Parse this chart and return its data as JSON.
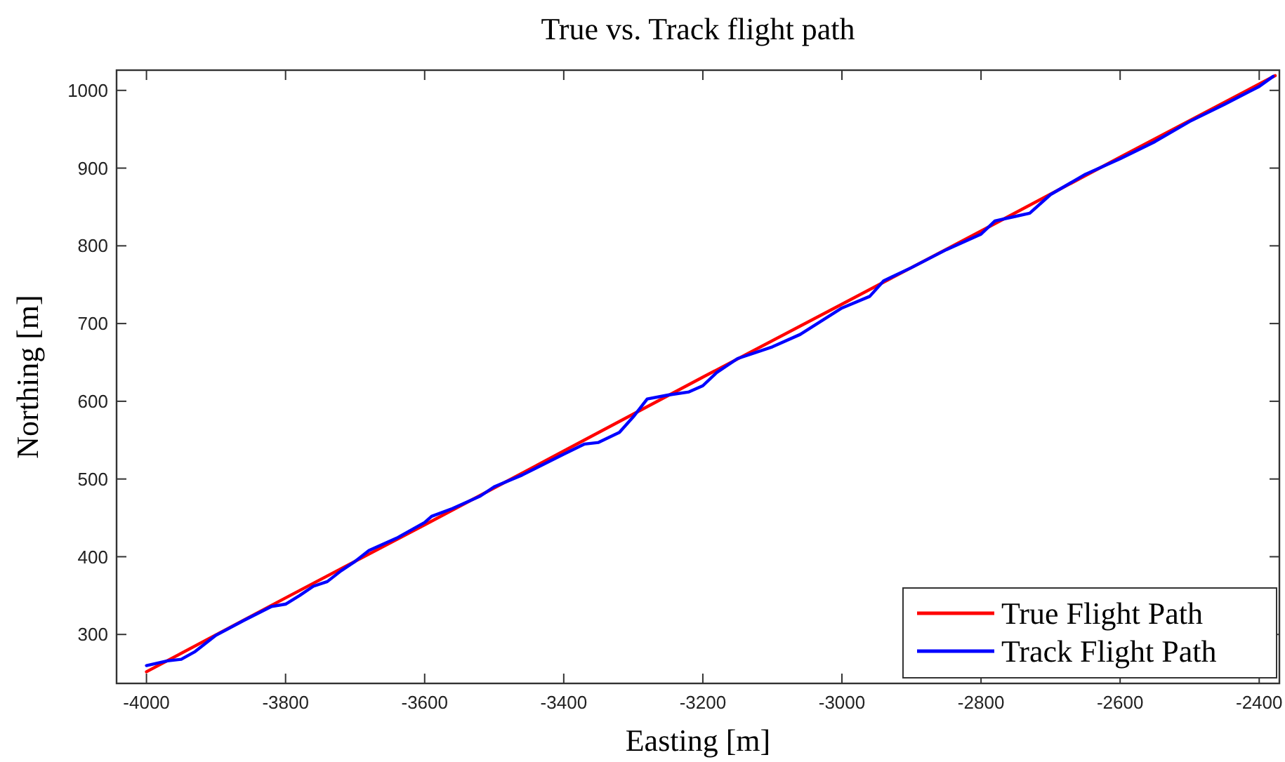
{
  "chart_data": {
    "type": "line",
    "title": "True vs. Track flight path",
    "xlabel": "Easting [m]",
    "ylabel": "Northing [m]",
    "xlim": [
      -4043,
      -2371
    ],
    "ylim": [
      237,
      1026
    ],
    "xticks": [
      -4000,
      -3800,
      -3600,
      -3400,
      -3200,
      -3000,
      -2800,
      -2600,
      -2400
    ],
    "yticks": [
      300,
      400,
      500,
      600,
      700,
      800,
      900,
      1000
    ],
    "grid": false,
    "legend": "bottom right",
    "line_style": "solid",
    "series": [
      {
        "name": "True Flight Path",
        "color": "#ff0000",
        "x": [
          -4000,
          -3800,
          -3600,
          -3400,
          -3200,
          -3000,
          -2800,
          -2600,
          -2377
        ],
        "values": [
          252,
          347,
          441,
          536,
          631,
          725,
          819,
          914,
          1019
        ]
      },
      {
        "name": "Track Flight Path",
        "color": "#0000ff",
        "x": [
          -4000,
          -3970,
          -3950,
          -3930,
          -3900,
          -3860,
          -3820,
          -3800,
          -3780,
          -3760,
          -3740,
          -3720,
          -3700,
          -3680,
          -3640,
          -3600,
          -3590,
          -3560,
          -3520,
          -3500,
          -3460,
          -3400,
          -3370,
          -3350,
          -3320,
          -3300,
          -3280,
          -3250,
          -3220,
          -3200,
          -3180,
          -3150,
          -3100,
          -3060,
          -3000,
          -2960,
          -2940,
          -2900,
          -2850,
          -2800,
          -2780,
          -2750,
          -2730,
          -2700,
          -2650,
          -2600,
          -2550,
          -2500,
          -2450,
          -2400,
          -2380
        ],
        "values": [
          260,
          266,
          268,
          278,
          299,
          318,
          336,
          339,
          350,
          362,
          368,
          382,
          394,
          408,
          424,
          444,
          452,
          462,
          478,
          490,
          505,
          532,
          545,
          547,
          560,
          580,
          603,
          608,
          612,
          620,
          637,
          655,
          670,
          686,
          720,
          735,
          755,
          772,
          795,
          815,
          832,
          838,
          842,
          866,
          892,
          912,
          934,
          960,
          982,
          1005,
          1018
        ]
      }
    ]
  }
}
